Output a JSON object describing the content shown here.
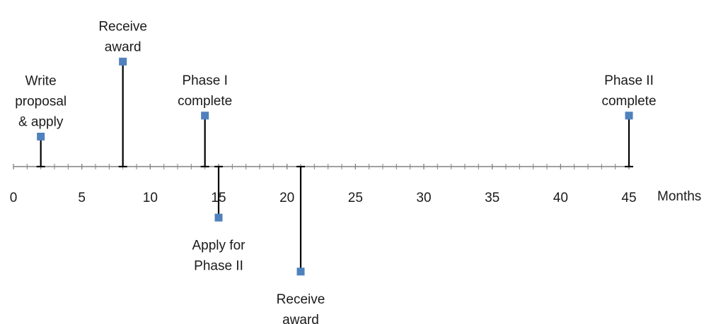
{
  "chart_data": {
    "type": "timeline",
    "xlabel": "Months",
    "xlim": [
      0,
      45
    ],
    "major_ticks": [
      0,
      5,
      10,
      15,
      20,
      25,
      30,
      35,
      40,
      45
    ],
    "minor_tick_step": 1,
    "grid": false,
    "legend": "none",
    "marker_color": "#4f81bd",
    "stem_color": "#000000",
    "events": [
      {
        "month": 2,
        "height": 1.0,
        "label": [
          "Write",
          "proposal",
          "& apply"
        ]
      },
      {
        "month": 8,
        "height": 3.5,
        "label": [
          "Receive",
          "award"
        ]
      },
      {
        "month": 14,
        "height": 1.7,
        "label": [
          "Phase I",
          "complete"
        ]
      },
      {
        "month": 15,
        "height": -1.7,
        "label": [
          "Apply for",
          "Phase II"
        ]
      },
      {
        "month": 21,
        "height": -3.5,
        "label": [
          "Receive",
          "award"
        ]
      },
      {
        "month": 45,
        "height": 1.7,
        "label": [
          "Phase II",
          "complete"
        ]
      }
    ]
  }
}
